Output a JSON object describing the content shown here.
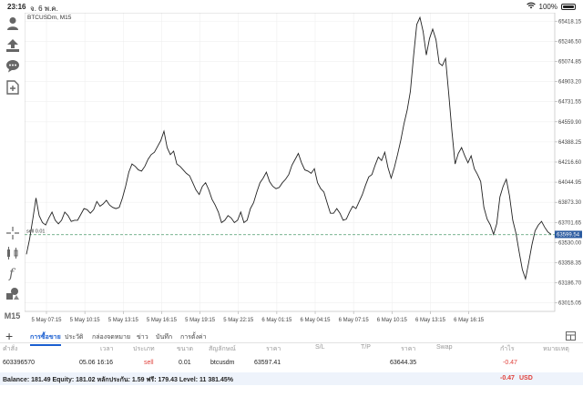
{
  "status_bar": {
    "time": "23:16",
    "date": "จ. 6 พ.ค.",
    "battery": "100%",
    "wifi_icon": "wifi-icon",
    "battery_icon": "battery-icon"
  },
  "toolbar": {
    "items": [
      {
        "name": "account-icon"
      },
      {
        "name": "trade-icon"
      },
      {
        "name": "chat-icon"
      },
      {
        "name": "add-chart-icon"
      },
      {
        "name": "crosshair-icon"
      },
      {
        "name": "indicators-icon"
      },
      {
        "name": "function-icon"
      },
      {
        "name": "objects-icon"
      }
    ],
    "timeframe": "M15"
  },
  "chart": {
    "symbol_label": "BTCUSDm, M15",
    "order_label": "sell 0.01",
    "current_price_label": "63599.54",
    "colors": {
      "line": "#222222",
      "order_line": "#4a9a6a",
      "price_tag": "#2b5ba0"
    }
  },
  "chart_data": {
    "type": "line",
    "title": "",
    "xlabel": "",
    "ylabel": "",
    "ylim": [
      62943,
      65490
    ],
    "x_tick_labels": [
      "5 May 07:15",
      "5 May 10:15",
      "5 May 13:15",
      "5 May 16:15",
      "5 May 19:15",
      "5 May 22:15",
      "6 May 01:15",
      "6 May 04:15",
      "6 May 07:15",
      "6 May 10:15",
      "6 May 13:15",
      "6 May 16:15"
    ],
    "y_tick_labels": [
      "65418.15",
      "65246.50",
      "65074.85",
      "64903.20",
      "64731.55",
      "64559.90",
      "64388.25",
      "64216.60",
      "64044.95",
      "63873.30",
      "63701.65",
      "63530.00",
      "63358.35",
      "63186.70",
      "63015.05"
    ],
    "y_ticks": [
      65418.15,
      65246.5,
      65074.85,
      64903.2,
      64731.55,
      64559.9,
      64388.25,
      64216.6,
      64044.95,
      63873.3,
      63701.65,
      63530.0,
      63358.35,
      63186.7,
      63015.05
    ],
    "current_price": 63599.54,
    "order_price": 63597.41,
    "grid": true,
    "series": [
      {
        "values": [
          63430,
          63560,
          63730,
          63910,
          63760,
          63700,
          63680,
          63740,
          63790,
          63720,
          63690,
          63720,
          63790,
          63760,
          63710,
          63720,
          63720,
          63770,
          63820,
          63810,
          63780,
          63810,
          63880,
          63840,
          63860,
          63890,
          63850,
          63830,
          63820,
          63830,
          63910,
          64010,
          64130,
          64200,
          64180,
          64150,
          64140,
          64180,
          64240,
          64280,
          64300,
          64350,
          64400,
          64480,
          64340,
          64280,
          64310,
          64200,
          64180,
          64150,
          64120,
          64100,
          64040,
          63980,
          63940,
          64010,
          64040,
          63980,
          63900,
          63850,
          63790,
          63700,
          63720,
          63760,
          63740,
          63700,
          63720,
          63790,
          63700,
          63720,
          63820,
          63870,
          63960,
          64040,
          64080,
          64130,
          64050,
          64010,
          63990,
          64000,
          64040,
          64070,
          64110,
          64190,
          64240,
          64290,
          64210,
          64150,
          64140,
          64120,
          64160,
          64040,
          63990,
          63960,
          63870,
          63780,
          63780,
          63820,
          63780,
          63720,
          63730,
          63790,
          63840,
          63820,
          63880,
          63940,
          64020,
          64090,
          64110,
          64190,
          64260,
          64230,
          64300,
          64170,
          64080,
          64170,
          64280,
          64400,
          64540,
          64660,
          64820,
          65120,
          65390,
          65450,
          65330,
          65130,
          65270,
          65350,
          65260,
          65060,
          65040,
          65100,
          64800,
          64480,
          64200,
          64290,
          64340,
          64270,
          64210,
          64270,
          64160,
          64110,
          64050,
          63830,
          63730,
          63680,
          63600,
          63690,
          63920,
          64010,
          64070,
          63930,
          63720,
          63610,
          63450,
          63300,
          63220,
          63360,
          63510,
          63630,
          63680,
          63710,
          63660,
          63620,
          63600
        ],
        "x_tick_indices": [
          0,
          12,
          24,
          36,
          48,
          60,
          72,
          84,
          96,
          108,
          120,
          132
        ]
      }
    ]
  },
  "tabs": {
    "add_icon": "plus-icon",
    "items": [
      "การซื้อขาย",
      "ประวัติ",
      "กล่องจดหมาย",
      "ข่าว",
      "บันทึก",
      "การตั้งค่า"
    ],
    "active_index": 0,
    "right_icon": "layout-icon"
  },
  "table": {
    "headers": {
      "order": "คำสั่ง",
      "time": "เวลา",
      "type": "ประเภท",
      "volume": "ขนาด",
      "symbol": "สัญลักษณ์",
      "price": "ราคา",
      "sl": "S/L",
      "tp": "T/P",
      "current_price": "ราคา",
      "swap": "Swap",
      "profit": "กำไร",
      "comment": "หมายเหตุ"
    },
    "rows": [
      {
        "order": "603396570",
        "time": "05.06 16:16",
        "type": "sell",
        "volume": "0.01",
        "symbol": "btcusdm",
        "price": "63597.41",
        "sl": "",
        "tp": "",
        "current_price": "63644.35",
        "swap": "",
        "profit": "-0.47",
        "comment": ""
      }
    ]
  },
  "balance": {
    "summary": "Balance: 181.49 Equity: 181.02 หลักประกัน: 1.59 ฟรี: 179.43 Level: 11 381.45%",
    "profit": "-0.47",
    "currency": "USD"
  }
}
